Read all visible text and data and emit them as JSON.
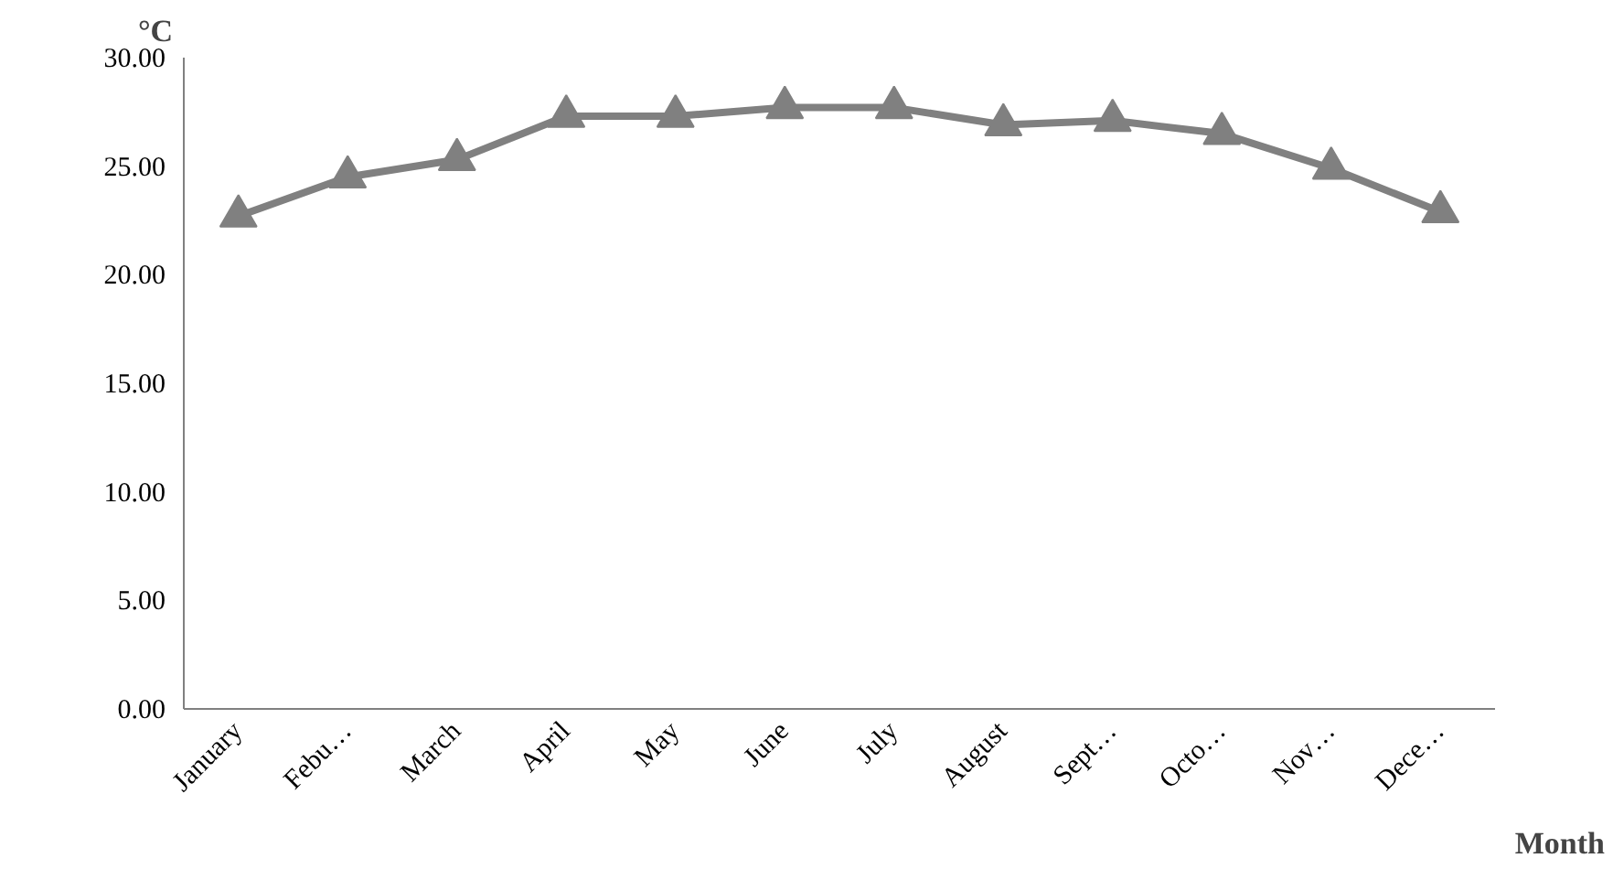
{
  "chart_data": {
    "type": "line",
    "xlabel": "Month",
    "ylabel": "°C",
    "categories": [
      "January",
      "Febu…",
      "March",
      "April",
      "May",
      "June",
      "July",
      "August",
      "Sept…",
      "Octo…",
      "Nov…",
      "Dece…"
    ],
    "series": [
      {
        "color": "#808080",
        "values": [
          22.7,
          24.5,
          25.3,
          27.3,
          27.3,
          27.7,
          27.7,
          26.9,
          27.1,
          26.5,
          24.9,
          22.9
        ]
      }
    ],
    "ylim": [
      0,
      30
    ],
    "yticks": [
      {
        "value": 0,
        "label": "0.00"
      },
      {
        "value": 5,
        "label": "5.00"
      },
      {
        "value": 10,
        "label": "10.00"
      },
      {
        "value": 15,
        "label": "15.00"
      },
      {
        "value": 20,
        "label": "20.00"
      },
      {
        "value": 25,
        "label": "25.00"
      },
      {
        "value": 30,
        "label": "30.00"
      }
    ],
    "marker": "triangle",
    "line_style": "solid",
    "grid": false
  }
}
